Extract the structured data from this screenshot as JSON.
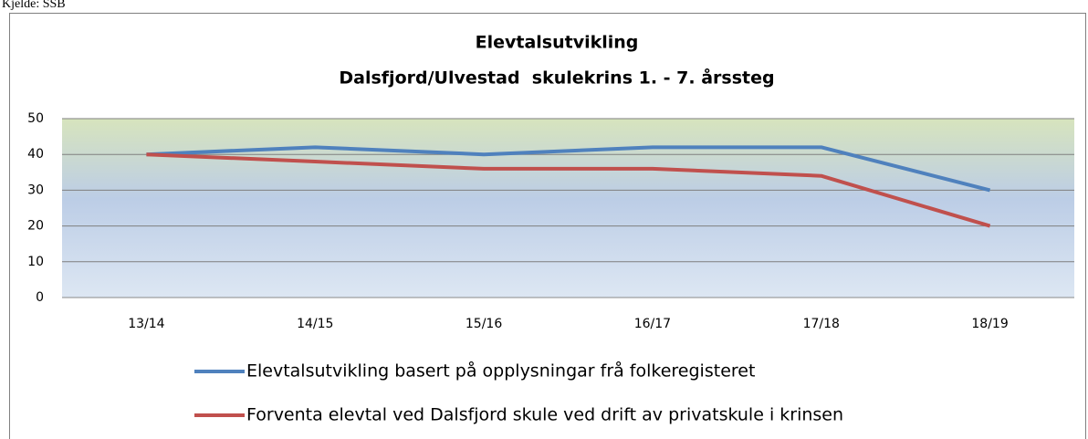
{
  "chart_data": {
    "type": "line",
    "source": "Kjelde: SSB",
    "title": "Elevtalsutvikling",
    "subtitle": "Dalsfjord/Ulvestad  skulekrins 1. - 7. årssteg",
    "categories": [
      "13/14",
      "14/15",
      "15/16",
      "16/17",
      "17/18",
      "18/19"
    ],
    "series": [
      {
        "name": "Elevtalsutvikling basert på opplysningar frå folkeregisteret",
        "color": "#4f81bd",
        "values": [
          40,
          42,
          40,
          42,
          42,
          30
        ]
      },
      {
        "name": "Forventa elevtal ved Dalsfjord skule ved drift av privatskule i krinsen",
        "color": "#c0504d",
        "values": [
          40,
          38,
          36,
          36,
          34,
          20
        ]
      }
    ],
    "ylim": [
      0,
      50
    ],
    "yticks": [
      0,
      10,
      20,
      30,
      40,
      50
    ],
    "grid": true,
    "legend": "bottom"
  }
}
